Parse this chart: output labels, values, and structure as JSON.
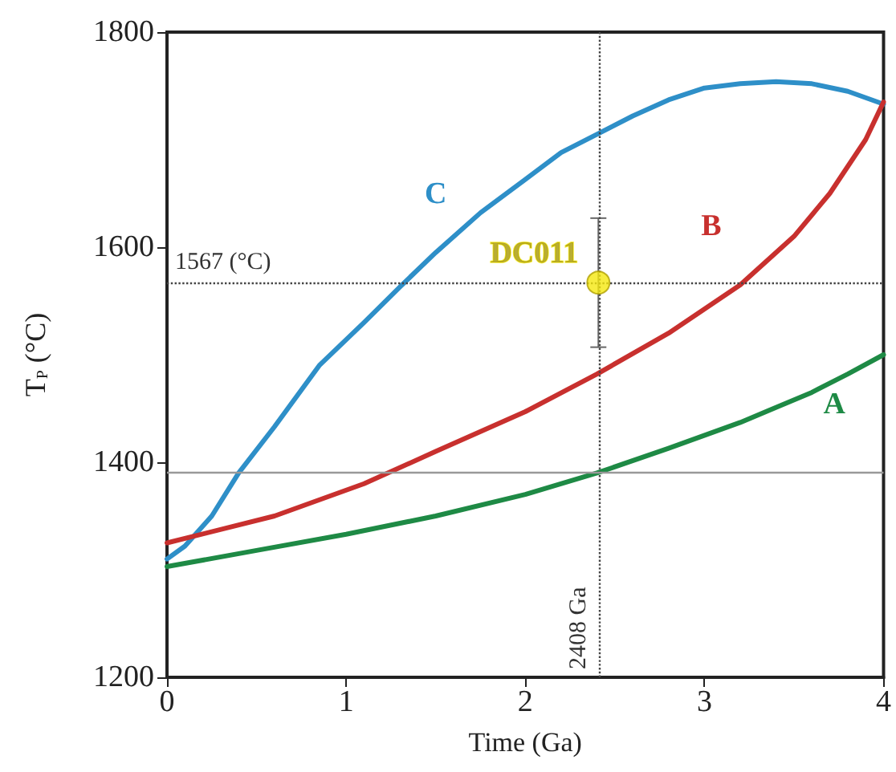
{
  "chart_data": {
    "type": "line",
    "xlabel": "Time (Ga)",
    "ylabel": "T$_{P}$ (°C)",
    "xlim": [
      0,
      4
    ],
    "xticks": [
      0,
      1,
      2,
      3,
      4
    ],
    "ylim": [
      1200,
      1800
    ],
    "yticks": [
      1200,
      1400,
      1600,
      1800
    ],
    "grid": false,
    "legend": false,
    "marker": "none",
    "line_style": "solid",
    "series": [
      {
        "name": "C",
        "color": "#2e8fc8",
        "x": [
          0,
          0.1,
          0.25,
          0.4,
          0.6,
          0.85,
          1.1,
          1.3,
          1.5,
          1.75,
          2,
          2.2,
          2.4,
          2.6,
          2.8,
          3,
          3.2,
          3.4,
          3.6,
          3.8,
          4
        ],
        "values": [
          1310,
          1322,
          1350,
          1390,
          1433,
          1490,
          1530,
          1563,
          1595,
          1632,
          1663,
          1688,
          1705,
          1722,
          1737,
          1748,
          1752,
          1754,
          1752,
          1745,
          1733
        ]
      },
      {
        "name": "B",
        "color": "#c8302e",
        "x": [
          0,
          0.6,
          1.1,
          1.5,
          2,
          2.4,
          2.8,
          3.2,
          3.5,
          3.7,
          3.9,
          4
        ],
        "values": [
          1325,
          1350,
          1380,
          1410,
          1447,
          1482,
          1520,
          1565,
          1610,
          1650,
          1700,
          1735
        ]
      },
      {
        "name": "A",
        "color": "#1e8a45",
        "x": [
          0,
          0.5,
          1,
          1.5,
          2,
          2.4,
          2.8,
          3.2,
          3.6,
          3.8,
          4
        ],
        "values": [
          1303,
          1318,
          1333,
          1350,
          1370,
          1390,
          1413,
          1437,
          1465,
          1482,
          1500
        ]
      },
      {
        "name": "DC011",
        "type": "scatter",
        "marker": "circle",
        "color": "#f5e80f",
        "x": [
          2.408
        ],
        "values": [
          1567
        ],
        "errors": [
          60
        ]
      }
    ],
    "ref_lines": [
      {
        "axis": "x",
        "value": 2.408,
        "label": "2408 Ga",
        "color": "#444444",
        "line_style": "dotted"
      },
      {
        "axis": "y",
        "value": 1567,
        "label": "1567 (°C)",
        "color": "#444444",
        "line_style": "dotted"
      },
      {
        "axis": "y",
        "value": 1390,
        "label": null,
        "color": "#999999",
        "line_style": "solid"
      }
    ]
  }
}
